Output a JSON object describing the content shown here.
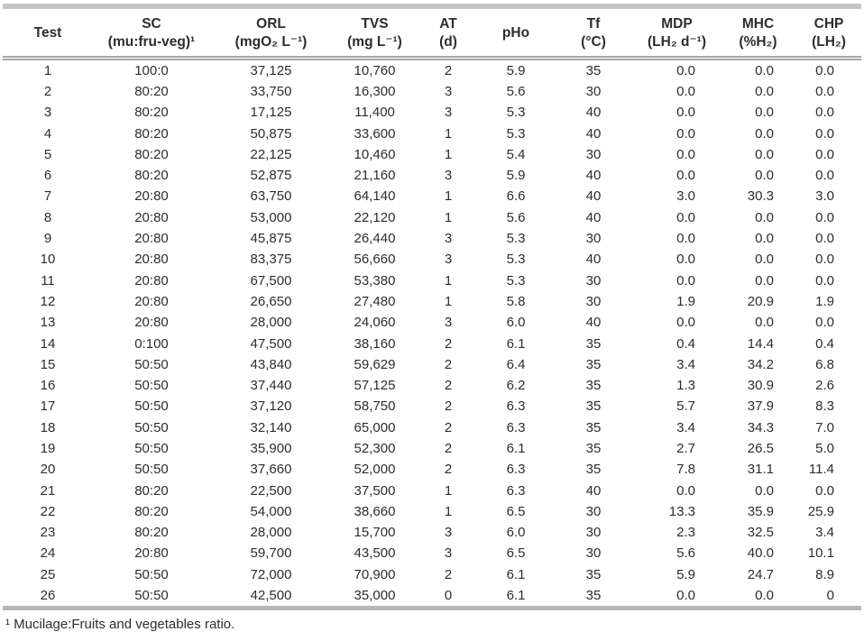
{
  "table": {
    "columns": [
      {
        "line1": "Test",
        "line2": ""
      },
      {
        "line1": "SC",
        "line2": "(mu:fru-veg)¹"
      },
      {
        "line1": "ORL",
        "line2": "(mgO₂ L⁻¹)"
      },
      {
        "line1": "TVS",
        "line2": "(mg L⁻¹)"
      },
      {
        "line1": "AT",
        "line2": "(d)"
      },
      {
        "line1": "pHo",
        "line2": ""
      },
      {
        "line1": "Tf",
        "line2": "(°C)"
      },
      {
        "line1": "MDP",
        "line2": "(LH₂ d⁻¹)"
      },
      {
        "line1": "MHC",
        "line2": "(%H₂)"
      },
      {
        "line1": "CHP",
        "line2": "(LH₂)"
      }
    ],
    "rows": [
      [
        "1",
        "100:0",
        "37,125",
        "10,760",
        "2",
        "5.9",
        "35",
        "0.0",
        "0.0",
        "0.0"
      ],
      [
        "2",
        "80:20",
        "33,750",
        "16,300",
        "3",
        "5.6",
        "30",
        "0.0",
        "0.0",
        "0.0"
      ],
      [
        "3",
        "80:20",
        "17,125",
        "11,400",
        "3",
        "5.3",
        "40",
        "0.0",
        "0.0",
        "0.0"
      ],
      [
        "4",
        "80:20",
        "50,875",
        "33,600",
        "1",
        "5.3",
        "40",
        "0.0",
        "0.0",
        "0.0"
      ],
      [
        "5",
        "80:20",
        "22,125",
        "10,460",
        "1",
        "5.4",
        "30",
        "0.0",
        "0.0",
        "0.0"
      ],
      [
        "6",
        "80:20",
        "52,875",
        "21,160",
        "3",
        "5.9",
        "40",
        "0.0",
        "0.0",
        "0.0"
      ],
      [
        "7",
        "20:80",
        "63,750",
        "64,140",
        "1",
        "6.6",
        "40",
        "3.0",
        "30.3",
        "3.0"
      ],
      [
        "8",
        "20:80",
        "53,000",
        "22,120",
        "1",
        "5.6",
        "40",
        "0.0",
        "0.0",
        "0.0"
      ],
      [
        "9",
        "20:80",
        "45,875",
        "26,440",
        "3",
        "5.3",
        "30",
        "0.0",
        "0.0",
        "0.0"
      ],
      [
        "10",
        "20:80",
        "83,375",
        "56,660",
        "3",
        "5.3",
        "40",
        "0.0",
        "0.0",
        "0.0"
      ],
      [
        "11",
        "20:80",
        "67,500",
        "53,380",
        "1",
        "5.3",
        "30",
        "0.0",
        "0.0",
        "0.0"
      ],
      [
        "12",
        "20:80",
        "26,650",
        "27,480",
        "1",
        "5.8",
        "30",
        "1.9",
        "20.9",
        "1.9"
      ],
      [
        "13",
        "20:80",
        "28,000",
        "24,060",
        "3",
        "6.0",
        "40",
        "0.0",
        "0.0",
        "0.0"
      ],
      [
        "14",
        "0:100",
        "47,500",
        "38,160",
        "2",
        "6.1",
        "35",
        "0.4",
        "14.4",
        "0.4"
      ],
      [
        "15",
        "50:50",
        "43,840",
        "59,629",
        "2",
        "6.4",
        "35",
        "3.4",
        "34.2",
        "6.8"
      ],
      [
        "16",
        "50:50",
        "37,440",
        "57,125",
        "2",
        "6.2",
        "35",
        "1.3",
        "30.9",
        "2.6"
      ],
      [
        "17",
        "50:50",
        "37,120",
        "58,750",
        "2",
        "6.3",
        "35",
        "5.7",
        "37.9",
        "8.3"
      ],
      [
        "18",
        "50:50",
        "32,140",
        "65,000",
        "2",
        "6.3",
        "35",
        "3.4",
        "34.3",
        "7.0"
      ],
      [
        "19",
        "50:50",
        "35,900",
        "52,300",
        "2",
        "6.1",
        "35",
        "2.7",
        "26.5",
        "5.0"
      ],
      [
        "20",
        "50:50",
        "37,660",
        "52,000",
        "2",
        "6.3",
        "35",
        "7.8",
        "31.1",
        "11.4"
      ],
      [
        "21",
        "80:20",
        "22,500",
        "37,500",
        "1",
        "6.3",
        "40",
        "0.0",
        "0.0",
        "0.0"
      ],
      [
        "22",
        "80:20",
        "54,000",
        "38,660",
        "1",
        "6.5",
        "30",
        "13.3",
        "35.9",
        "25.9"
      ],
      [
        "23",
        "80:20",
        "28,000",
        "15,700",
        "3",
        "6.0",
        "30",
        "2.3",
        "32.5",
        "3.4"
      ],
      [
        "24",
        "20:80",
        "59,700",
        "43,500",
        "3",
        "6.5",
        "30",
        "5.6",
        "40.0",
        "10.1"
      ],
      [
        "25",
        "50:50",
        "72,000",
        "70,900",
        "2",
        "6.1",
        "35",
        "5.9",
        "24.7",
        "8.9"
      ],
      [
        "26",
        "50:50",
        "42,500",
        "35,000",
        "0",
        "6.1",
        "35",
        "0.0",
        "0.0",
        "0"
      ]
    ]
  },
  "footnote": "¹ Mucilage:Fruits and vegetables ratio."
}
